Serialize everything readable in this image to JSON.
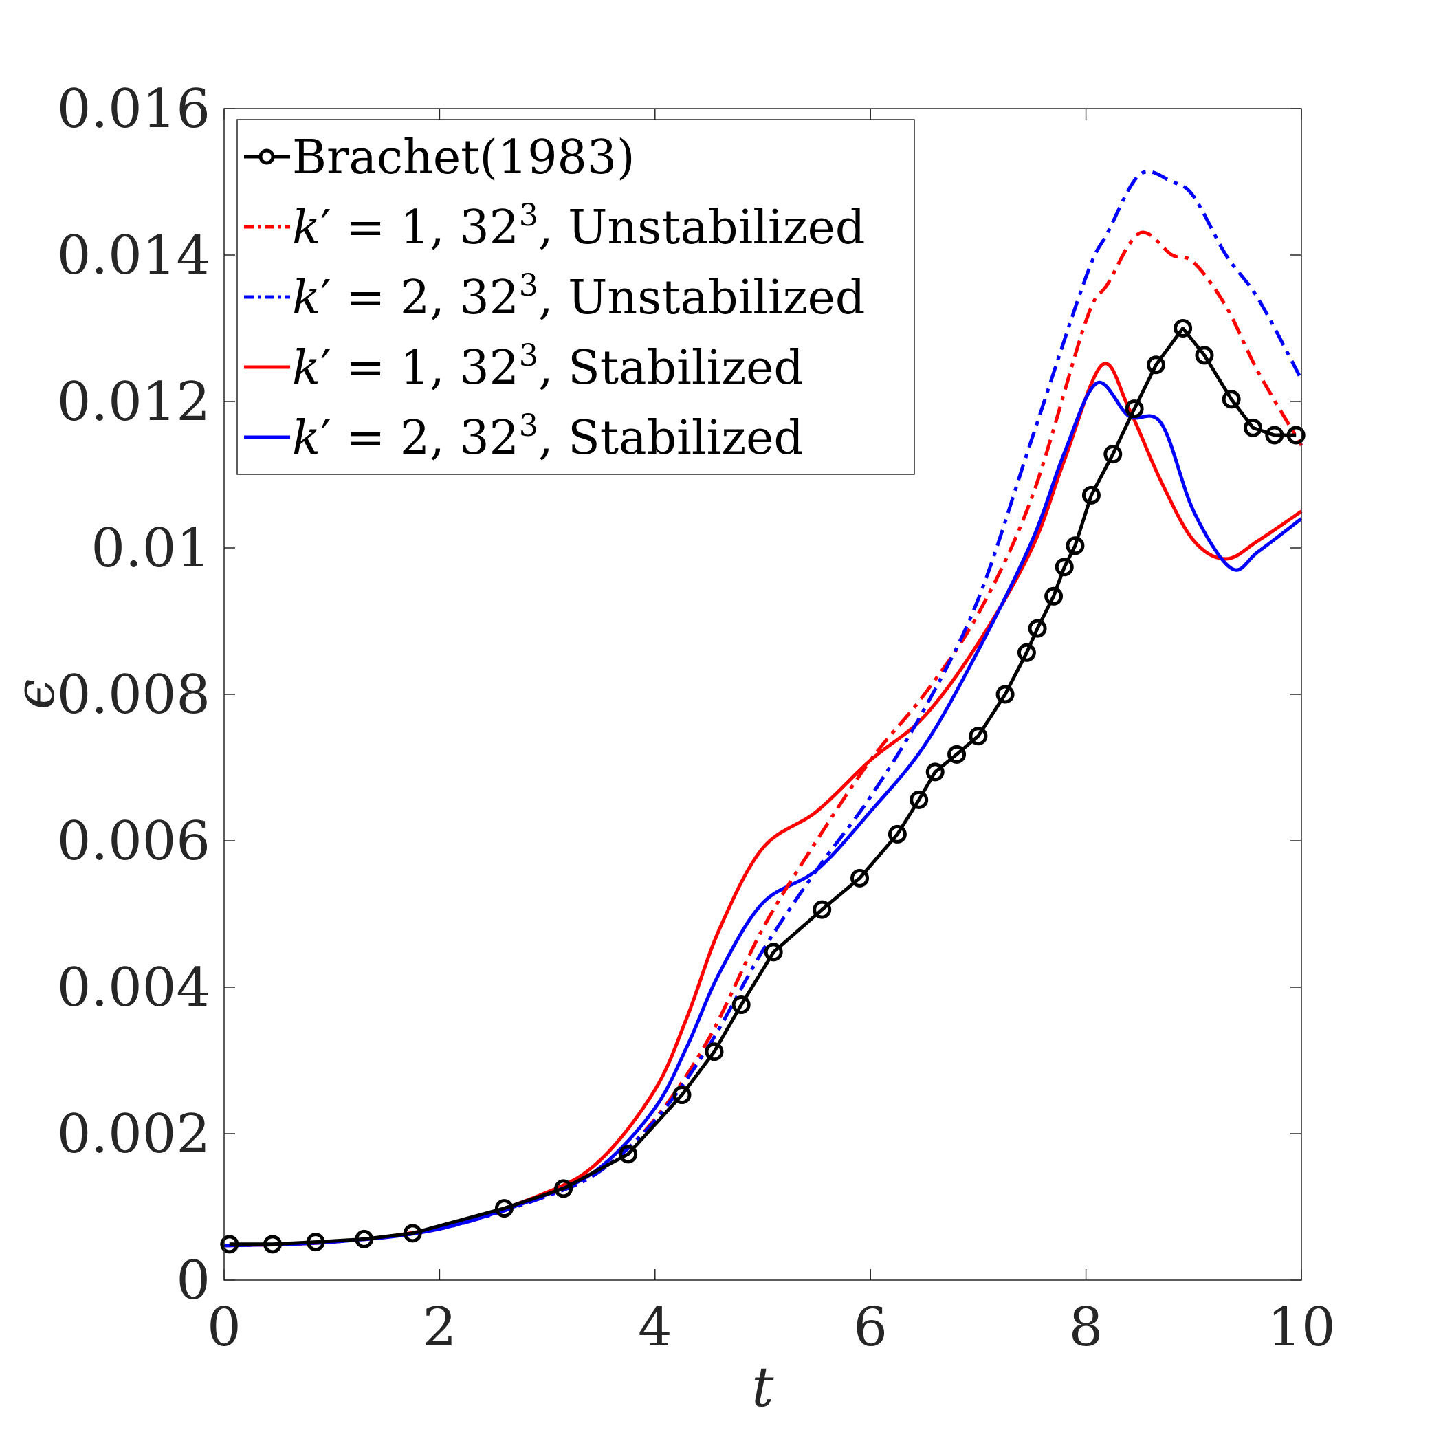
{
  "chart_data": {
    "type": "line",
    "title": "",
    "xlabel": "t",
    "ylabel": "ϵ",
    "xlim": [
      0,
      10
    ],
    "ylim": [
      0,
      0.016
    ],
    "x_ticks": [
      0,
      2,
      4,
      6,
      8,
      10
    ],
    "x_tick_labels": [
      "0",
      "2",
      "4",
      "6",
      "8",
      "10"
    ],
    "y_ticks": [
      0,
      0.002,
      0.004,
      0.006,
      0.008,
      0.01,
      0.012,
      0.014,
      0.016
    ],
    "y_tick_labels": [
      "0",
      "0.002",
      "0.004",
      "0.006",
      "0.008",
      "0.01",
      "0.012",
      "0.014",
      "0.016"
    ],
    "legend_position": "top-left",
    "series": [
      {
        "name": "Brachet(1983)",
        "legend": {
          "main": "Brachet(1983)",
          "eq": "",
          "sup": "",
          "suffix": ""
        },
        "color": "#000000",
        "dash": "",
        "marker": "circle",
        "x": [
          0.05,
          0.45,
          0.85,
          1.3,
          1.75,
          2.6,
          3.15,
          3.75,
          4.25,
          4.55,
          4.8,
          5.1,
          5.55,
          5.9,
          6.25,
          6.45,
          6.6,
          6.8,
          7.0,
          7.25,
          7.45,
          7.55,
          7.7,
          7.8,
          7.9,
          8.05,
          8.25,
          8.45,
          8.65,
          8.9,
          9.1,
          9.35,
          9.55,
          9.75,
          9.95
        ],
        "y": [
          0.00049,
          0.00049,
          0.00052,
          0.00056,
          0.00064,
          0.00098,
          0.00125,
          0.00172,
          0.00253,
          0.00312,
          0.00376,
          0.00448,
          0.00506,
          0.00549,
          0.00609,
          0.00656,
          0.00694,
          0.00718,
          0.00743,
          0.008,
          0.00857,
          0.0089,
          0.00934,
          0.00974,
          0.01003,
          0.01072,
          0.01128,
          0.0119,
          0.0125,
          0.013,
          0.01263,
          0.01203,
          0.01164,
          0.01154,
          0.01154
        ]
      },
      {
        "name": "k′ = 1, 32³, Unstabilized",
        "legend": {
          "main": "k",
          "eq": "′ = 1, 32",
          "sup": "3",
          "suffix": ", Unstabilized"
        },
        "color": "#ff0000",
        "dash": "24,10,6,10",
        "marker": "none",
        "x": [
          0,
          1,
          2,
          3,
          3.5,
          4,
          4.5,
          5,
          5.5,
          6,
          6.5,
          7,
          7.5,
          8,
          8.2,
          8.5,
          8.8,
          9,
          9.3,
          9.6,
          10
        ],
        "y": [
          0.00047,
          0.00052,
          0.0007,
          0.00115,
          0.0015,
          0.0022,
          0.0033,
          0.0048,
          0.006,
          0.0071,
          0.008,
          0.0091,
          0.0107,
          0.0131,
          0.0136,
          0.0143,
          0.014,
          0.0139,
          0.0133,
          0.0124,
          0.0114
        ]
      },
      {
        "name": "k′ = 2, 32³, Unstabilized",
        "legend": {
          "main": "k",
          "eq": "′ = 2, 32",
          "sup": "3",
          "suffix": ", Unstabilized"
        },
        "color": "#0000ff",
        "dash": "24,10,6,10",
        "marker": "none",
        "x": [
          0,
          1,
          2,
          3,
          3.5,
          4,
          4.5,
          5,
          5.5,
          6,
          6.5,
          7,
          7.5,
          8,
          8.2,
          8.5,
          8.8,
          9,
          9.3,
          9.6,
          10
        ],
        "y": [
          0.00047,
          0.00052,
          0.0007,
          0.00115,
          0.0015,
          0.00218,
          0.0032,
          0.0045,
          0.0056,
          0.0066,
          0.0078,
          0.0093,
          0.0115,
          0.0137,
          0.0143,
          0.0151,
          0.015,
          0.0148,
          0.014,
          0.0134,
          0.0123
        ]
      },
      {
        "name": "k′ = 1, 32³, Stabilized",
        "legend": {
          "main": "k",
          "eq": "′ = 1, 32",
          "sup": "3",
          "suffix": ", Stabilized"
        },
        "color": "#ff0000",
        "dash": "",
        "marker": "none",
        "x": [
          0,
          1,
          2,
          3,
          3.5,
          4,
          4.3,
          4.6,
          5,
          5.5,
          6,
          6.5,
          7,
          7.5,
          7.8,
          8.15,
          8.4,
          8.7,
          9,
          9.3,
          9.6,
          10
        ],
        "y": [
          0.00047,
          0.00052,
          0.00072,
          0.0012,
          0.00165,
          0.0026,
          0.0036,
          0.0048,
          0.0059,
          0.0064,
          0.0071,
          0.0077,
          0.0087,
          0.01,
          0.0112,
          0.0125,
          0.0119,
          0.0109,
          0.0101,
          0.00985,
          0.0101,
          0.0105
        ]
      },
      {
        "name": "k′ = 2, 32³, Stabilized",
        "legend": {
          "main": "k",
          "eq": "′ = 2, 32",
          "sup": "3",
          "suffix": ", Stabilized"
        },
        "color": "#0000ff",
        "dash": "",
        "marker": "none",
        "x": [
          0,
          1,
          2,
          3,
          3.5,
          4,
          4.3,
          4.6,
          5,
          5.5,
          6,
          6.5,
          7,
          7.5,
          7.8,
          8.1,
          8.4,
          8.7,
          9,
          9.35,
          9.6,
          10
        ],
        "y": [
          0.00047,
          0.00052,
          0.0007,
          0.00117,
          0.00155,
          0.00235,
          0.0032,
          0.0042,
          0.00515,
          0.0056,
          0.0064,
          0.0073,
          0.0086,
          0.0101,
          0.0113,
          0.01225,
          0.0118,
          0.0117,
          0.0105,
          0.00972,
          0.00995,
          0.0104
        ]
      }
    ]
  }
}
